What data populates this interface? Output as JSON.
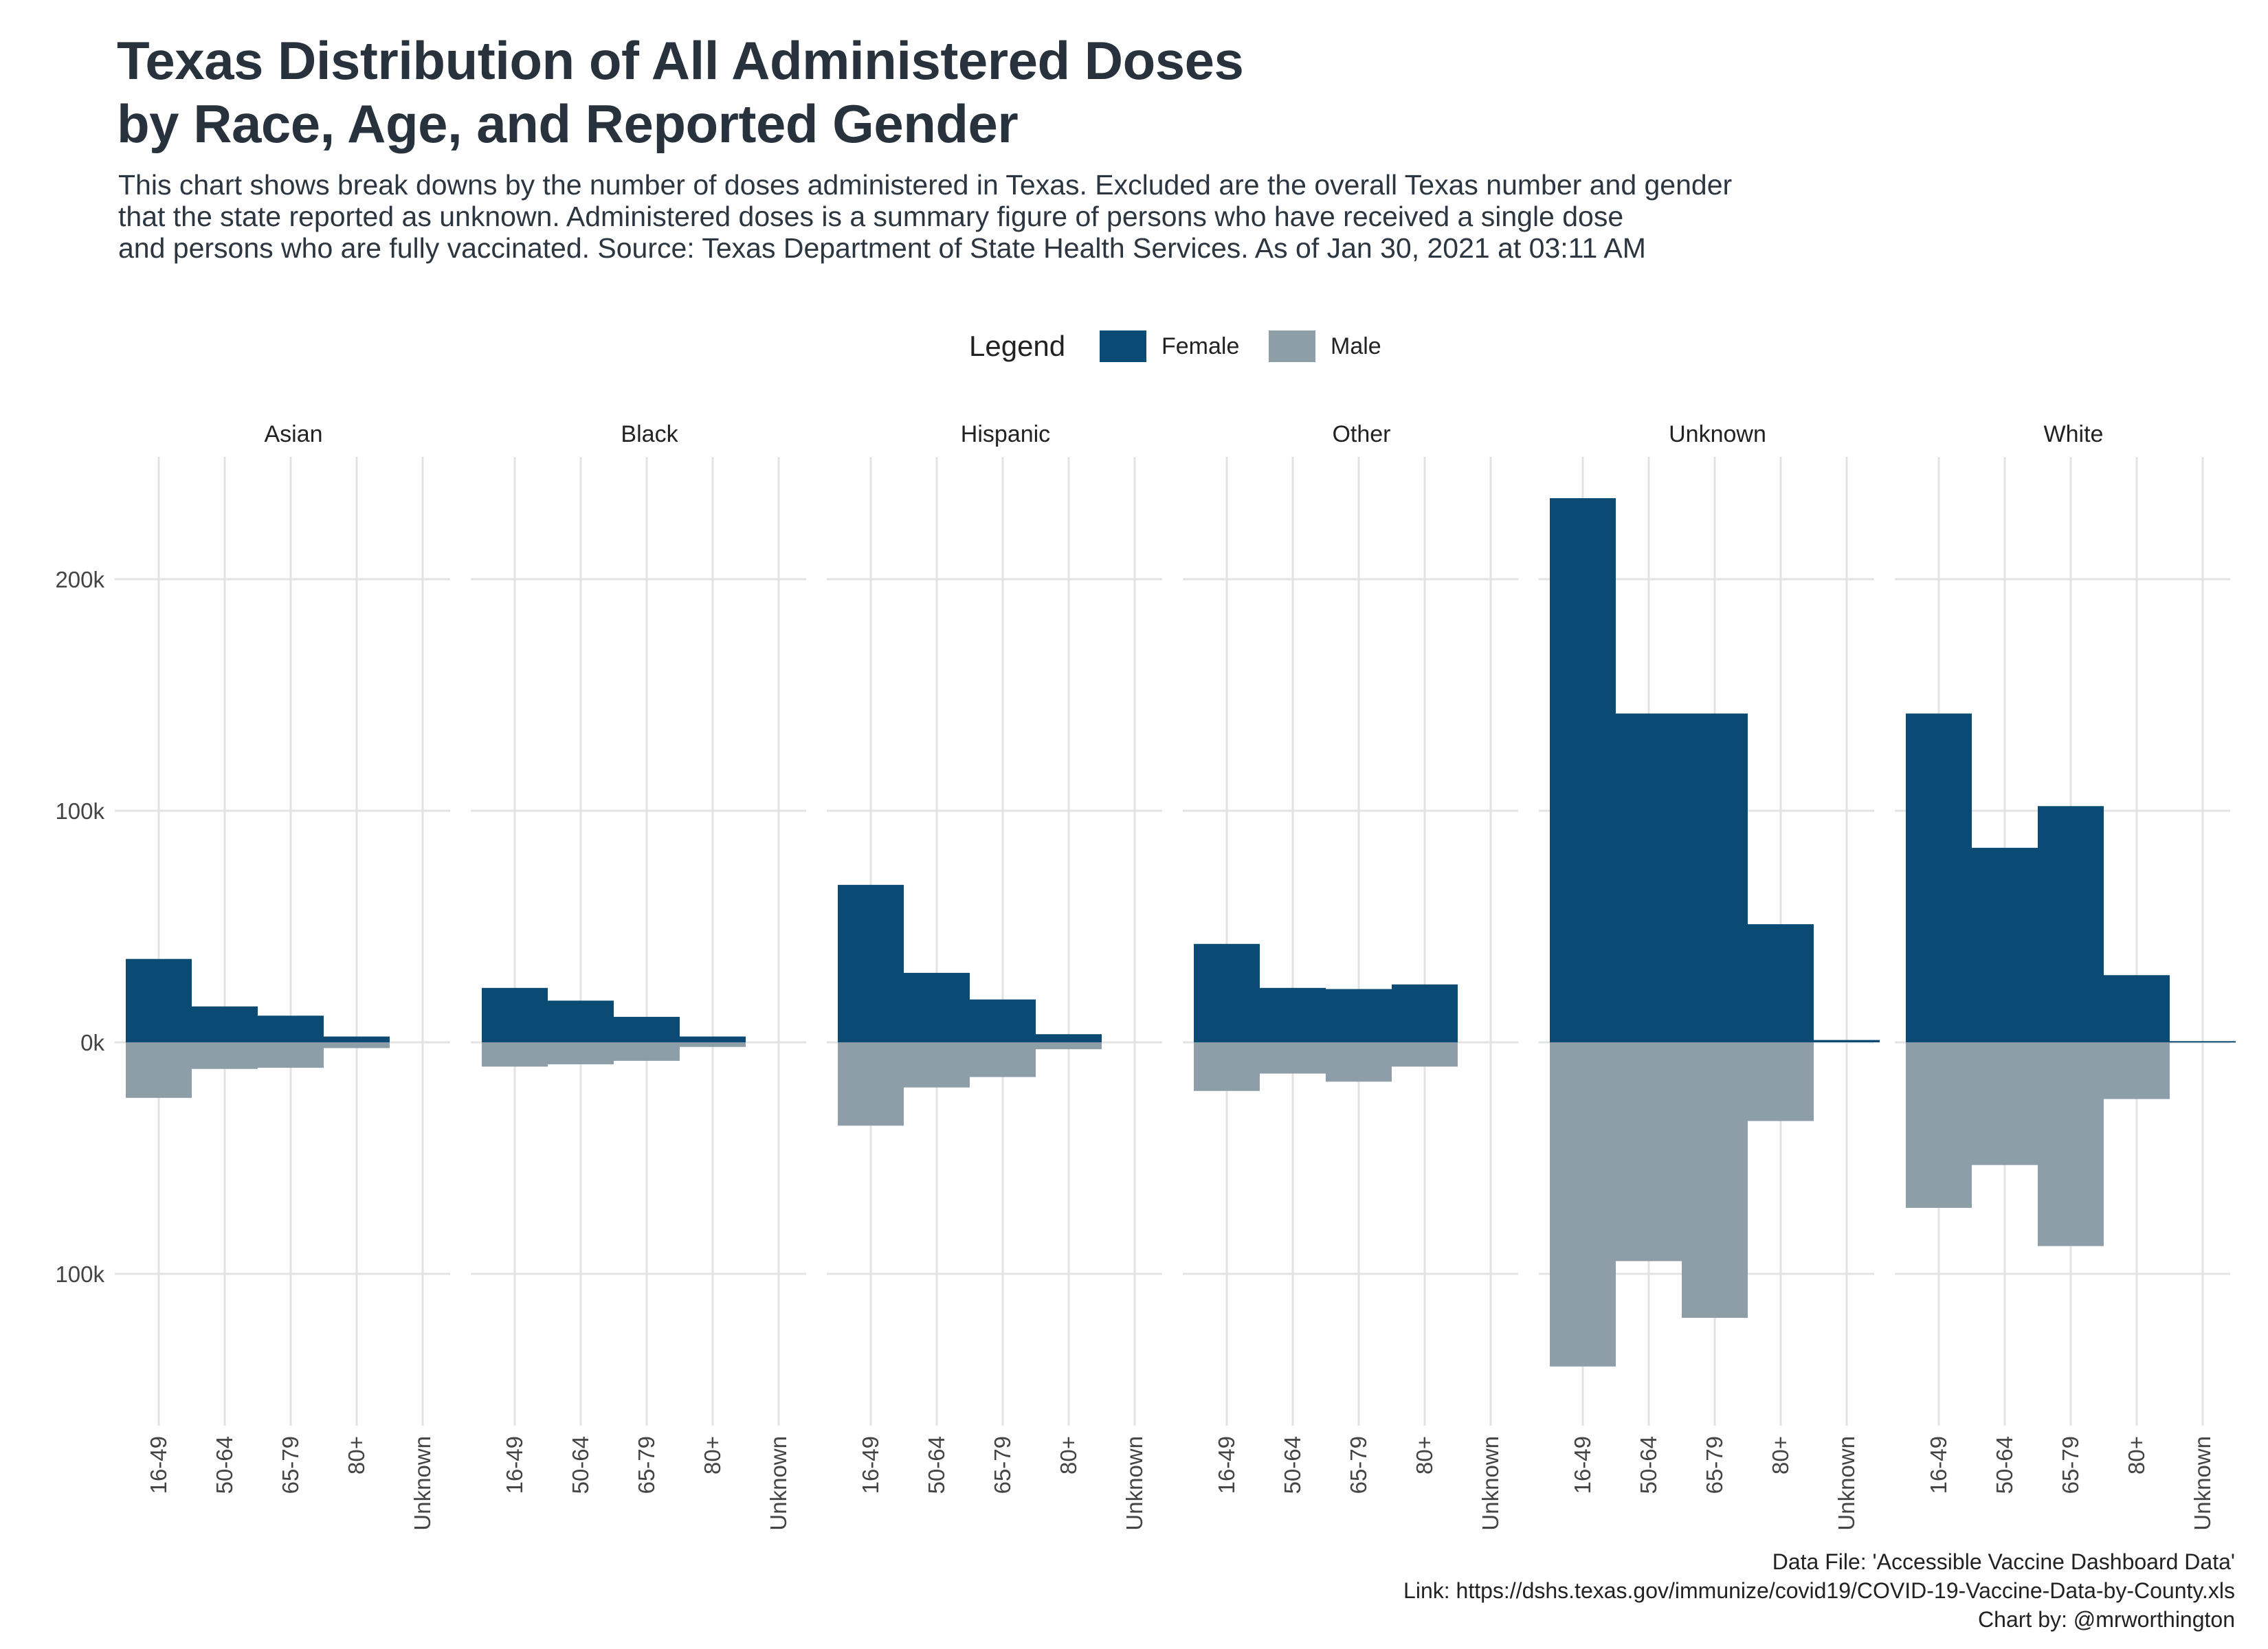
{
  "title_lines": [
    "Texas Distribution of All Administered Doses",
    "by Race, Age, and Reported Gender"
  ],
  "subtitle_lines": [
    "This chart shows break downs by the number of doses administered in Texas. Excluded are the overall Texas number and gender",
    "that the state reported as unknown. Administered doses is a summary figure of persons who have received a single dose",
    "and persons who are fully vaccinated. Source: Texas Department of State Health Services. As of Jan 30, 2021 at 03:11 AM"
  ],
  "caption_lines": [
    "Data File: 'Accessible Vaccine Dashboard Data'",
    "Link: https://dshs.texas.gov/immunize/covid19/COVID-19-Vaccine-Data-by-County.xls",
    "Chart by: @mrworthington"
  ],
  "colors": {
    "female": "#0b4a72",
    "male": "#8d9ea9",
    "grid": "#e3e3e3"
  },
  "chart_data": {
    "type": "bar",
    "facet_by": "Race",
    "legend": {
      "title": "Legend",
      "position": "top"
    },
    "categories": [
      "16-49",
      "50-64",
      "65-79",
      "80+",
      "Unknown"
    ],
    "y_ticks": [
      {
        "value": 200000,
        "label": "200k"
      },
      {
        "value": 100000,
        "label": "100k"
      },
      {
        "value": 0,
        "label": "0k"
      },
      {
        "value": -100000,
        "label": "100k"
      }
    ],
    "ylim": [
      -160000,
      245000
    ],
    "grid": true,
    "facets": [
      {
        "name": "Asian",
        "series": [
          {
            "name": "Female",
            "values": [
              36000,
              15500,
              11500,
              2500,
              0
            ]
          },
          {
            "name": "Male",
            "values": [
              -24000,
              -11500,
              -11000,
              -2500,
              0
            ]
          }
        ]
      },
      {
        "name": "Black",
        "series": [
          {
            "name": "Female",
            "values": [
              23500,
              18000,
              11000,
              2500,
              0
            ]
          },
          {
            "name": "Male",
            "values": [
              -10500,
              -9500,
              -8000,
              -2000,
              0
            ]
          }
        ]
      },
      {
        "name": "Hispanic",
        "series": [
          {
            "name": "Female",
            "values": [
              68000,
              30000,
              18500,
              3500,
              0
            ]
          },
          {
            "name": "Male",
            "values": [
              -36000,
              -19500,
              -15000,
              -3000,
              0
            ]
          }
        ]
      },
      {
        "name": "Other",
        "series": [
          {
            "name": "Female",
            "values": [
              42500,
              23500,
              23000,
              25000,
              0
            ]
          },
          {
            "name": "Male",
            "values": [
              -21000,
              -13500,
              -17000,
              -10500,
              0
            ]
          }
        ]
      },
      {
        "name": "Unknown",
        "series": [
          {
            "name": "Female",
            "values": [
              235000,
              142000,
              142000,
              51000,
              1000
            ]
          },
          {
            "name": "Male",
            "values": [
              -140000,
              -94500,
              -119000,
              -34000,
              0
            ]
          }
        ]
      },
      {
        "name": "White",
        "series": [
          {
            "name": "Female",
            "values": [
              142000,
              84000,
              102000,
              29000,
              500
            ]
          },
          {
            "name": "Male",
            "values": [
              -71500,
              -53000,
              -88000,
              -24500,
              0
            ]
          }
        ]
      }
    ]
  }
}
